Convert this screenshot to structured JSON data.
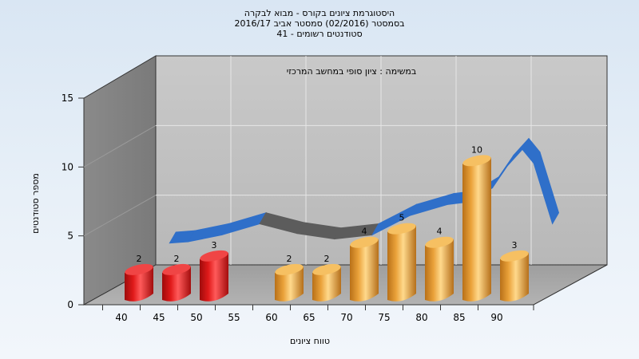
{
  "chart_title": {
    "line1": "היסטוגרמת ציונים בקורס - מבוא לבקרה",
    "line2": "בסמסטר (02/2016) סמסטר אביב 2016/17",
    "line3": "סטודנטים רשומים - 41"
  },
  "chart_data": {
    "type": "bar",
    "subtitle": "במשימה : ציון סופי במחשב המרכזי",
    "xlabel": "טווח ציונים",
    "ylabel": "מספר סטודנטים",
    "ylim": [
      0,
      15
    ],
    "yticks": [
      "0",
      "5",
      "10",
      "15"
    ],
    "categories": [
      "40",
      "45",
      "50",
      "55",
      "60",
      "65",
      "70",
      "75",
      "80",
      "85",
      "90"
    ],
    "values": [
      2,
      2,
      3,
      null,
      2,
      2,
      4,
      5,
      4,
      10,
      3
    ],
    "bar_colors": [
      "#e01a1a",
      "#e01a1a",
      "#e01a1a",
      null,
      "#f0a838",
      "#f0a838",
      "#f0a838",
      "#f0a838",
      "#f0a838",
      "#f0a838",
      "#f0a838"
    ],
    "trend_curve": [
      {
        "x": 43,
        "y": 3.6
      },
      {
        "x": 45.5,
        "y": 3.7
      },
      {
        "x": 50,
        "y": 4.2
      },
      {
        "x": 55,
        "y": 5.0
      },
      {
        "x": 60,
        "y": 4.3
      },
      {
        "x": 65,
        "y": 3.9
      },
      {
        "x": 70,
        "y": 4.2
      },
      {
        "x": 75,
        "y": 5.6
      },
      {
        "x": 80,
        "y": 6.4
      },
      {
        "x": 83,
        "y": 6.6
      },
      {
        "x": 86,
        "y": 7.6
      },
      {
        "x": 88,
        "y": 9.2
      },
      {
        "x": 90,
        "y": 10.4
      },
      {
        "x": 91.5,
        "y": 9.4
      },
      {
        "x": 94,
        "y": 5.0
      }
    ],
    "trend_color": "#2f6fc9",
    "grid": true
  }
}
